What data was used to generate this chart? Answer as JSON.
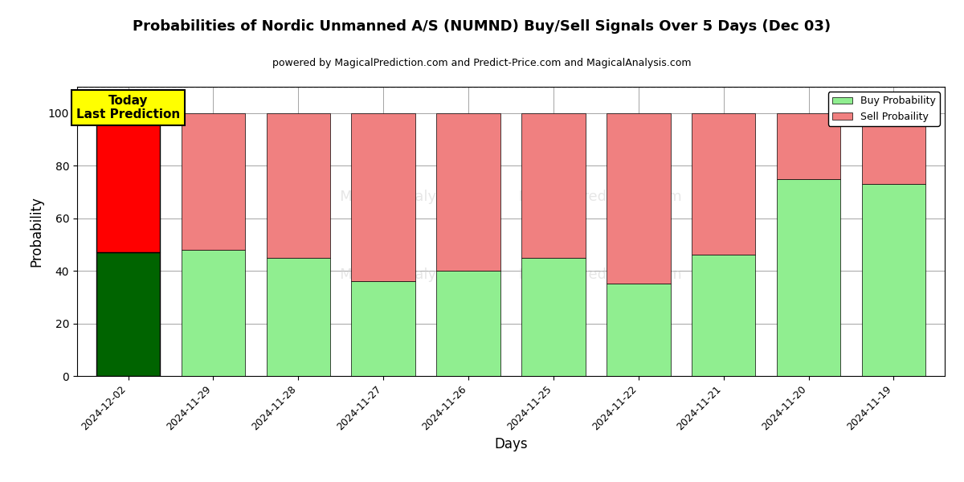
{
  "title": "Probabilities of Nordic Unmanned A/S (NUMND) Buy/Sell Signals Over 5 Days (Dec 03)",
  "subtitle": "powered by MagicalPrediction.com and Predict-Price.com and MagicalAnalysis.com",
  "xlabel": "Days",
  "ylabel": "Probability",
  "dates": [
    "2024-12-02",
    "2024-11-29",
    "2024-11-28",
    "2024-11-27",
    "2024-11-26",
    "2024-11-25",
    "2024-11-22",
    "2024-11-21",
    "2024-11-20",
    "2024-11-19"
  ],
  "buy_values": [
    47,
    48,
    45,
    36,
    40,
    45,
    35,
    46,
    75,
    73
  ],
  "sell_values": [
    53,
    52,
    55,
    64,
    60,
    55,
    65,
    54,
    25,
    27
  ],
  "today_buy_color": "#006400",
  "today_sell_color": "#ff0000",
  "buy_color": "#90EE90",
  "sell_color": "#F08080",
  "today_label_bg": "#ffff00",
  "today_label_text": "Today\nLast Prediction",
  "legend_buy": "Buy Probability",
  "legend_sell": "Sell Probaility",
  "ylim_max": 110,
  "dashed_line_y": 110,
  "bar_edgecolor": "#000000",
  "bar_linewidth": 0.5,
  "yticks": [
    0,
    20,
    40,
    60,
    80,
    100
  ],
  "watermark1": "MagicalAnalysis.com",
  "watermark2": "MagicalPrediction.com"
}
